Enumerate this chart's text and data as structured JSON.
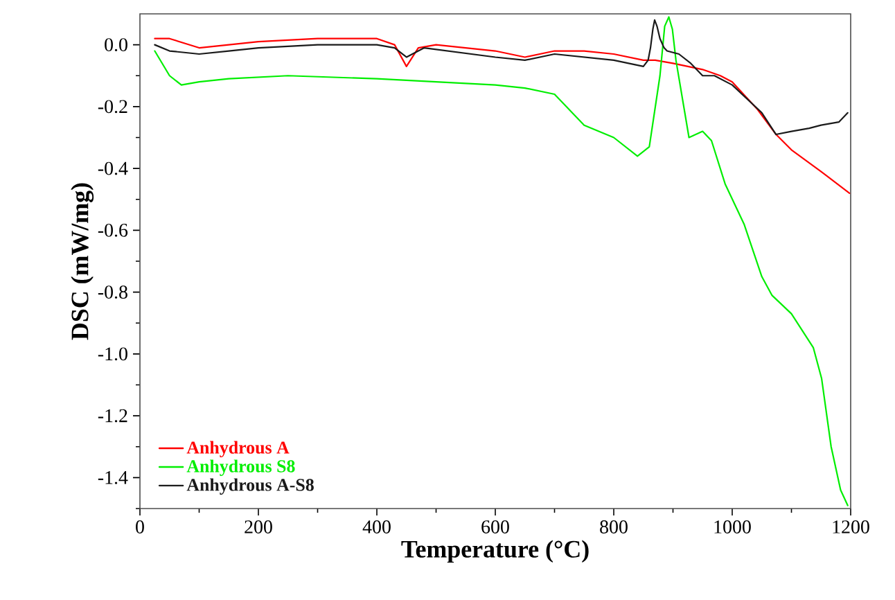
{
  "chart_data": {
    "type": "line",
    "xlabel": "Temperature (°C)",
    "ylabel": "DSC (mW/mg)",
    "xlim": [
      0,
      1200
    ],
    "ylim": [
      -1.5,
      0.1
    ],
    "xticks": [
      0,
      {
        "value": 100,
        "label": null
      },
      200,
      {
        "value": 300,
        "label": null
      },
      400,
      {
        "value": 500,
        "label": null
      },
      600,
      {
        "value": 700,
        "label": null
      },
      800,
      {
        "value": 900,
        "label": null
      },
      1000,
      {
        "value": 1100,
        "label": null
      },
      1200
    ],
    "yticks": [
      {
        "value": -1.5,
        "label": null
      },
      {
        "value": -1.4,
        "label": "-1.4"
      },
      {
        "value": -1.3,
        "label": null
      },
      {
        "value": -1.2,
        "label": "-1.2"
      },
      {
        "value": -1.1,
        "label": null
      },
      {
        "value": -1.0,
        "label": "-1.0"
      },
      {
        "value": -0.9,
        "label": null
      },
      {
        "value": -0.8,
        "label": "-0.8"
      },
      {
        "value": -0.7,
        "label": null
      },
      {
        "value": -0.6,
        "label": "-0.6"
      },
      {
        "value": -0.5,
        "label": null
      },
      {
        "value": -0.4,
        "label": "-0.4"
      },
      {
        "value": -0.3,
        "label": null
      },
      {
        "value": -0.2,
        "label": "-0.2"
      },
      {
        "value": -0.1,
        "label": null
      },
      {
        "value": 0.0,
        "label": "0.0"
      }
    ],
    "legend": "bottom left",
    "grid": false,
    "marker": "none",
    "line_style": "solid",
    "series": [
      {
        "name": "Anhydrous A",
        "color": "#ff0000",
        "x": [
          25,
          50,
          100,
          150,
          200,
          300,
          350,
          400,
          430,
          450,
          470,
          500,
          600,
          650,
          700,
          750,
          800,
          850,
          870,
          900,
          950,
          980,
          1000,
          1043,
          1074,
          1100,
          1150,
          1198
        ],
        "values": [
          0.02,
          0.02,
          -0.01,
          0.0,
          0.01,
          0.02,
          0.02,
          0.02,
          0.0,
          -0.07,
          -0.01,
          0.0,
          -0.02,
          -0.04,
          -0.02,
          -0.02,
          -0.03,
          -0.05,
          -0.05,
          -0.06,
          -0.08,
          -0.1,
          -0.12,
          -0.21,
          -0.29,
          -0.34,
          -0.41,
          -0.48
        ]
      },
      {
        "name": "Anhydrous S8",
        "color": "#00ee00",
        "x": [
          25,
          50,
          70,
          100,
          150,
          250,
          400,
          500,
          600,
          650,
          700,
          750,
          800,
          840,
          860,
          878,
          886,
          893,
          899,
          905,
          927,
          950,
          965,
          988,
          1020,
          1050,
          1067,
          1100,
          1137,
          1151,
          1167,
          1183,
          1195
        ],
        "values": [
          -0.02,
          -0.1,
          -0.13,
          -0.12,
          -0.11,
          -0.1,
          -0.11,
          -0.12,
          -0.13,
          -0.14,
          -0.16,
          -0.26,
          -0.3,
          -0.36,
          -0.33,
          -0.1,
          0.06,
          0.09,
          0.05,
          -0.05,
          -0.3,
          -0.28,
          -0.31,
          -0.45,
          -0.58,
          -0.75,
          -0.81,
          -0.87,
          -0.98,
          -1.08,
          -1.3,
          -1.44,
          -1.49
        ]
      },
      {
        "name": "Anhydrous A-S8",
        "color": "#1a1a1a",
        "x": [
          25,
          50,
          100,
          150,
          200,
          300,
          400,
          430,
          450,
          480,
          600,
          650,
          700,
          750,
          800,
          850,
          858,
          862,
          866,
          869,
          873,
          878,
          885,
          890,
          910,
          930,
          950,
          970,
          1000,
          1050,
          1074,
          1100,
          1130,
          1150,
          1180,
          1195
        ],
        "values": [
          0.0,
          -0.02,
          -0.03,
          -0.02,
          -0.01,
          0.0,
          0.0,
          -0.01,
          -0.04,
          -0.01,
          -0.04,
          -0.05,
          -0.03,
          -0.04,
          -0.05,
          -0.07,
          -0.05,
          -0.01,
          0.05,
          0.08,
          0.06,
          0.02,
          -0.01,
          -0.02,
          -0.03,
          -0.06,
          -0.1,
          -0.1,
          -0.13,
          -0.22,
          -0.29,
          -0.28,
          -0.27,
          -0.26,
          -0.25,
          -0.22
        ]
      }
    ]
  }
}
